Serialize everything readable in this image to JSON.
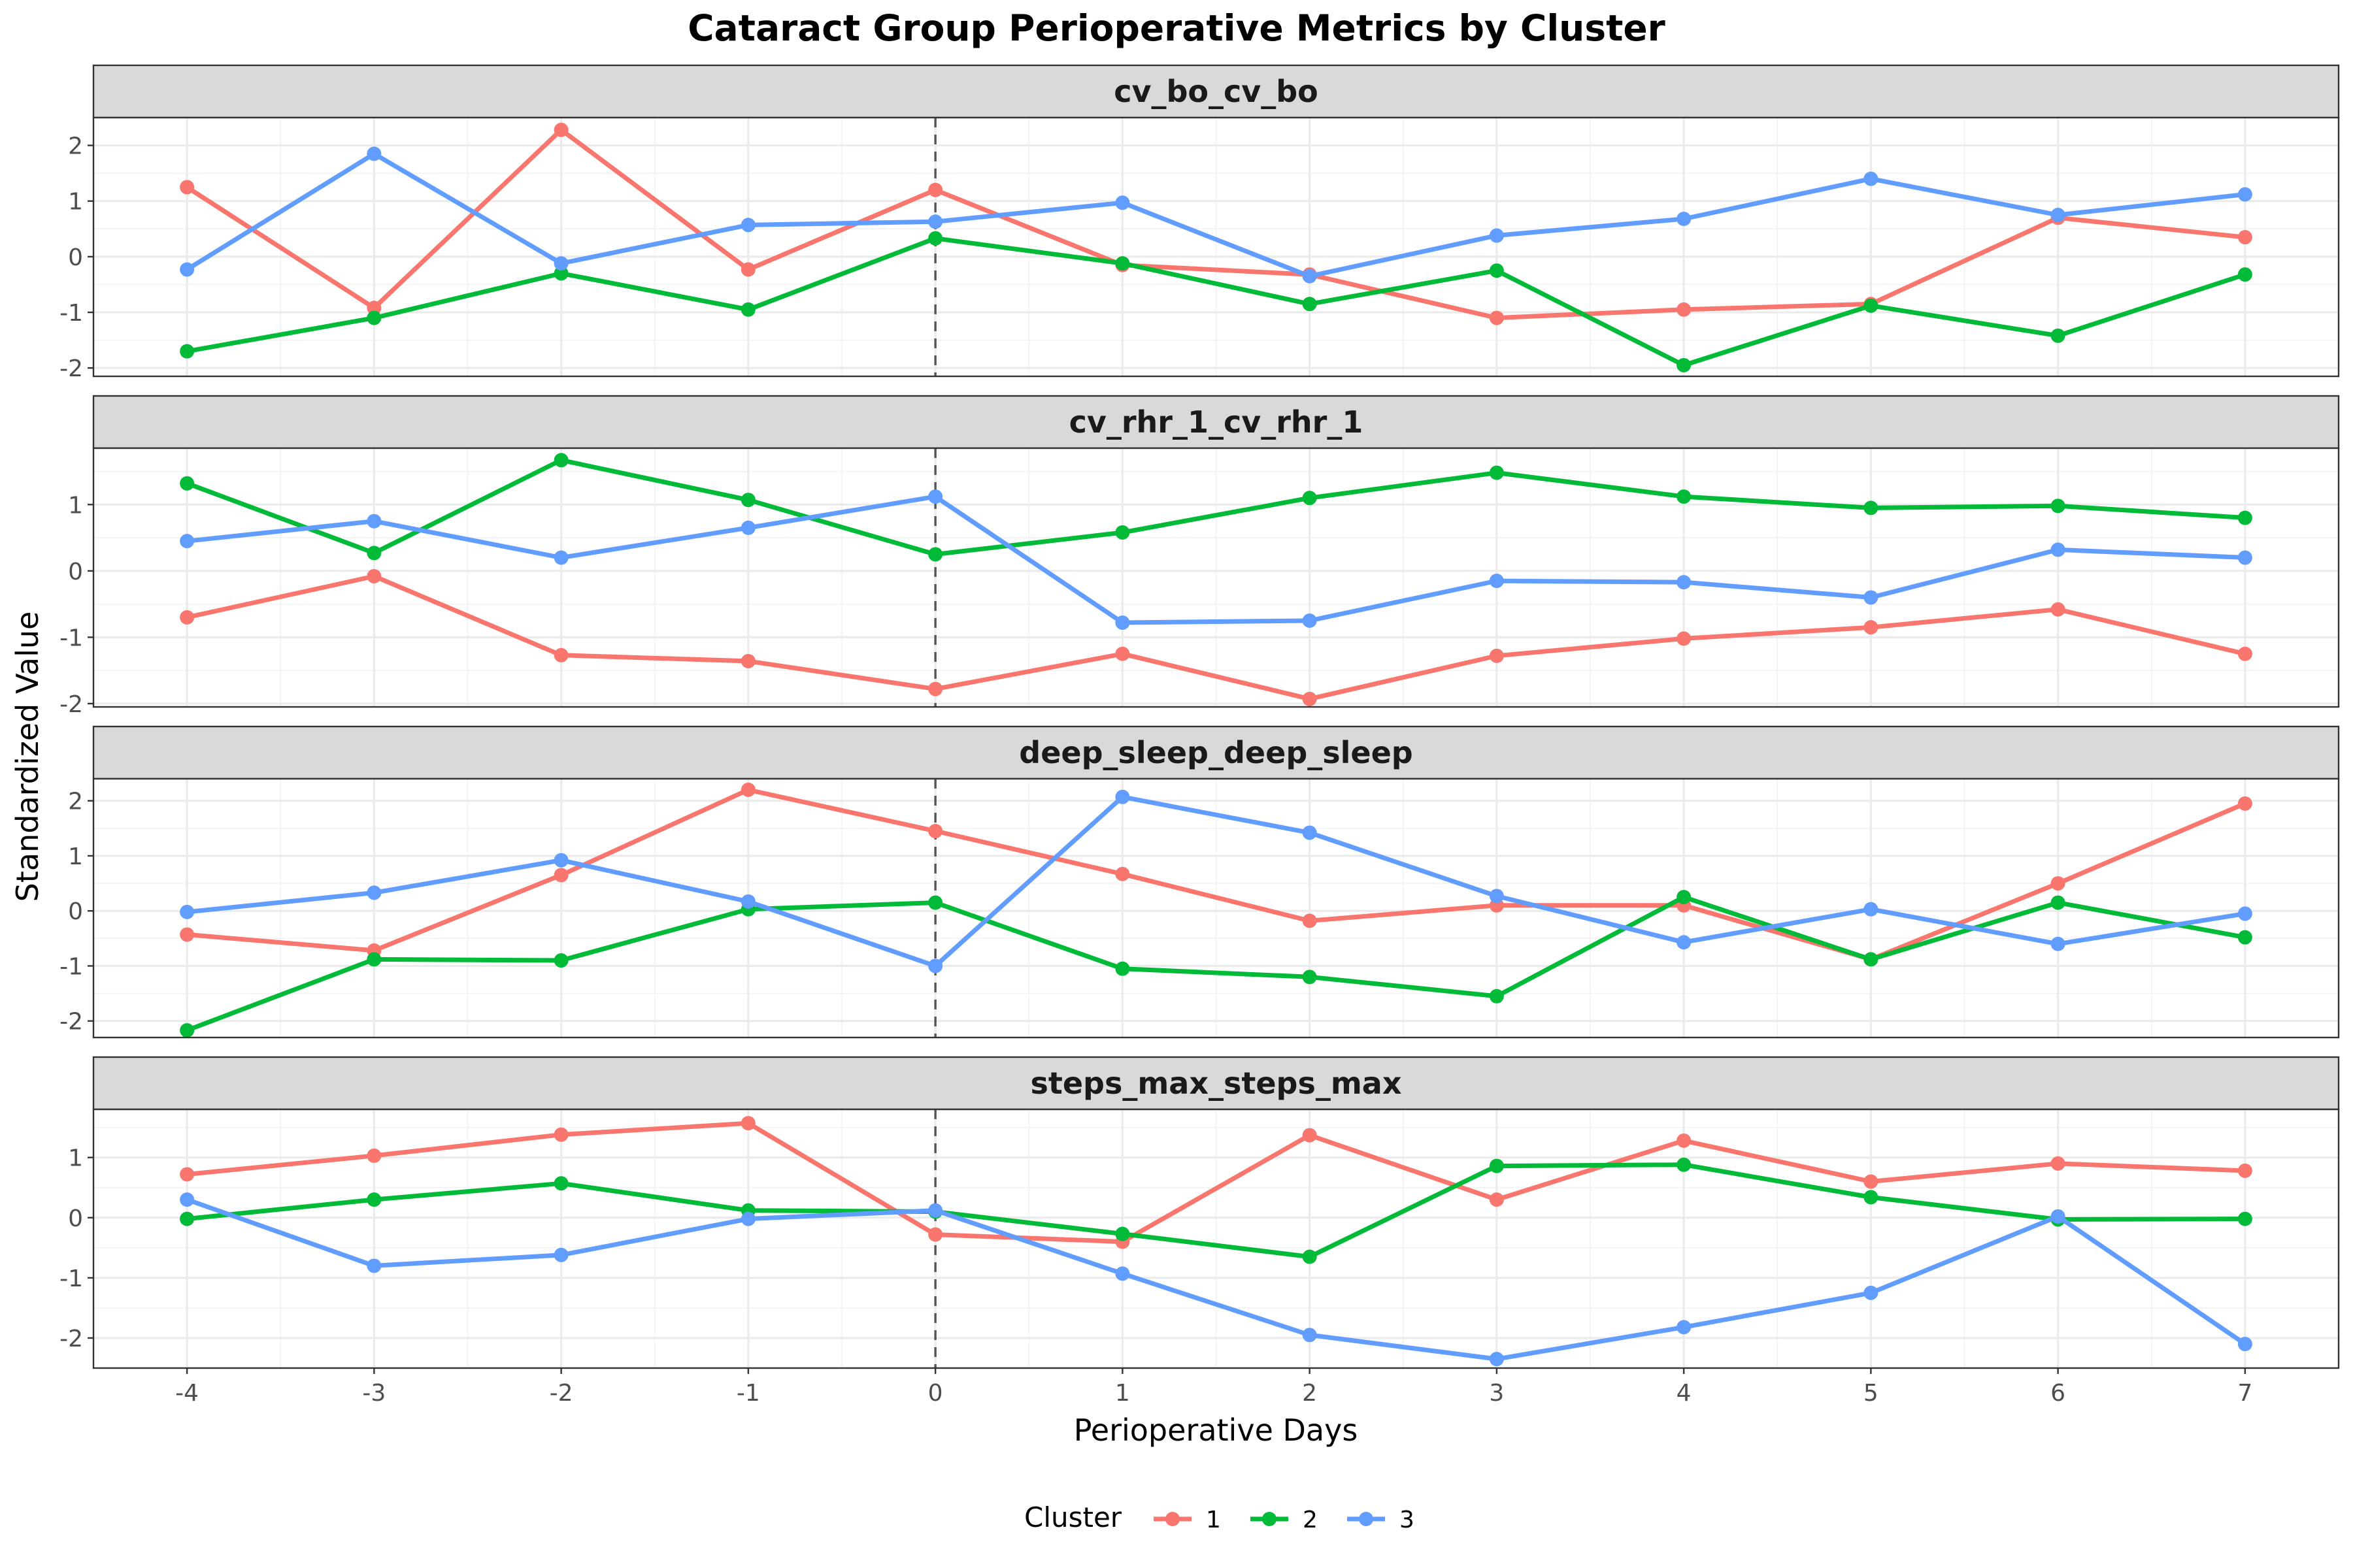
{
  "chart_data": {
    "type": "line",
    "title": "Cataract Group Perioperative Metrics by Cluster",
    "xlabel": "Perioperative Days",
    "ylabel": "Standardized Value",
    "x": [
      -4,
      -3,
      -2,
      -1,
      0,
      1,
      2,
      3,
      4,
      5,
      6,
      7
    ],
    "xlim": [
      -4.5,
      7.5
    ],
    "reference_line": {
      "x": 0,
      "style": "dashed"
    },
    "grid": true,
    "legend": {
      "title": "Cluster",
      "placement": "bottom"
    },
    "colors": {
      "1": "#F8766D",
      "2": "#00BA38",
      "3": "#619CFF"
    },
    "panels": [
      {
        "name": "cv_bo_cv_bo",
        "ylim": [
          -2.15,
          2.5
        ],
        "yticks": [
          -2,
          -1,
          0,
          1,
          2
        ],
        "series": [
          {
            "name": "1",
            "values": [
              1.25,
              -0.92,
              2.28,
              -0.23,
              1.2,
              -0.15,
              -0.32,
              -1.1,
              -0.95,
              -0.85,
              0.7,
              0.35
            ]
          },
          {
            "name": "2",
            "values": [
              -1.7,
              -1.1,
              -0.3,
              -0.95,
              0.33,
              -0.12,
              -0.85,
              -0.25,
              -1.95,
              -0.88,
              -1.42,
              -0.32
            ]
          },
          {
            "name": "3",
            "values": [
              -0.23,
              1.85,
              -0.12,
              0.57,
              0.63,
              0.97,
              -0.35,
              0.38,
              0.68,
              1.4,
              0.75,
              1.12
            ]
          }
        ]
      },
      {
        "name": "cv_rhr_1_cv_rhr_1",
        "ylim": [
          -2.05,
          1.85
        ],
        "yticks": [
          -2,
          -1,
          0,
          1
        ],
        "series": [
          {
            "name": "1",
            "values": [
              -0.7,
              -0.08,
              -1.27,
              -1.36,
              -1.78,
              -1.25,
              -1.93,
              -1.28,
              -1.02,
              -0.85,
              -0.58,
              -1.25
            ]
          },
          {
            "name": "2",
            "values": [
              1.32,
              0.27,
              1.67,
              1.07,
              0.25,
              0.58,
              1.1,
              1.48,
              1.12,
              0.95,
              0.98,
              0.8
            ]
          },
          {
            "name": "3",
            "values": [
              0.45,
              0.75,
              0.2,
              0.65,
              1.12,
              -0.78,
              -0.75,
              -0.15,
              -0.17,
              -0.4,
              0.32,
              0.2
            ]
          }
        ]
      },
      {
        "name": "deep_sleep_deep_sleep",
        "ylim": [
          -2.3,
          2.4
        ],
        "yticks": [
          -2,
          -1,
          0,
          1,
          2
        ],
        "series": [
          {
            "name": "1",
            "values": [
              -0.43,
              -0.72,
              0.65,
              2.2,
              1.45,
              0.67,
              -0.18,
              0.1,
              0.1,
              -0.88,
              0.5,
              1.95
            ]
          },
          {
            "name": "2",
            "values": [
              -2.17,
              -0.88,
              -0.9,
              0.03,
              0.15,
              -1.05,
              -1.2,
              -1.55,
              0.25,
              -0.88,
              0.15,
              -0.48
            ]
          },
          {
            "name": "3",
            "values": [
              -0.02,
              0.33,
              0.92,
              0.17,
              -1.0,
              2.07,
              1.42,
              0.27,
              -0.57,
              0.03,
              -0.6,
              -0.05
            ]
          }
        ]
      },
      {
        "name": "steps_max_steps_max",
        "ylim": [
          -2.5,
          1.8
        ],
        "yticks": [
          -2,
          -1,
          0,
          1
        ],
        "series": [
          {
            "name": "1",
            "values": [
              0.72,
              1.03,
              1.38,
              1.57,
              -0.28,
              -0.4,
              1.37,
              0.3,
              1.28,
              0.6,
              0.9,
              0.78
            ]
          },
          {
            "name": "2",
            "values": [
              -0.02,
              0.3,
              0.57,
              0.12,
              0.1,
              -0.27,
              -0.65,
              0.86,
              0.88,
              0.34,
              -0.03,
              -0.02
            ]
          },
          {
            "name": "3",
            "values": [
              0.3,
              -0.8,
              -0.62,
              -0.02,
              0.12,
              -0.93,
              -1.95,
              -2.35,
              -1.82,
              -1.25,
              0.02,
              -2.1
            ]
          }
        ]
      }
    ]
  }
}
